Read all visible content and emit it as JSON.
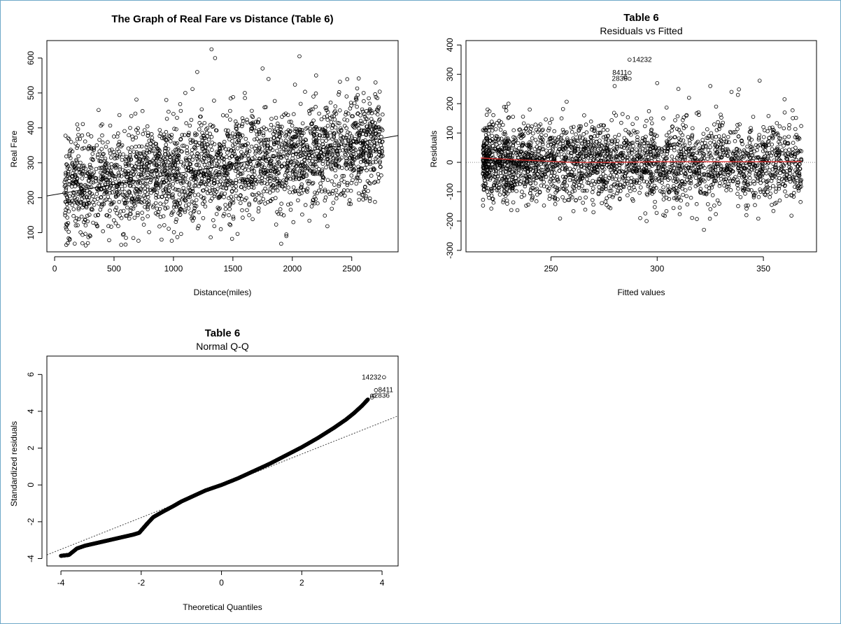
{
  "colors": {
    "background": "#ffffff",
    "frame_border": "#6fa8c8",
    "points": "#000000",
    "smoother": "#e03030",
    "reference_line": "#888888"
  },
  "chart_data": [
    {
      "type": "scatter",
      "title": "The Graph of Real Fare vs Distance (Table 6)",
      "subtitle": "",
      "xlabel": "Distance(miles)",
      "ylabel": "Real Fare",
      "xlim": [
        -65,
        2890
      ],
      "ylim": [
        45,
        650
      ],
      "xticks": [
        0,
        500,
        1000,
        1500,
        2000,
        2500
      ],
      "yticks": [
        100,
        200,
        300,
        400,
        500,
        600
      ],
      "grid": false,
      "marker": "open-circle",
      "fit_line": {
        "x": [
          -65,
          2890
        ],
        "y": [
          205,
          378
        ]
      },
      "series": [
        {
          "description_points": "dense cloud (approximate sample)",
          "x": [
            100,
            150,
            200,
            300,
            400,
            500,
            600,
            700,
            800,
            900,
            1000,
            1100,
            1200,
            1320,
            1350,
            1500,
            1600,
            1750,
            1800,
            1950,
            2060,
            2200,
            2400,
            2600,
            2700,
            280,
            560,
            940,
            1950,
            1950
          ],
          "y": [
            110,
            300,
            380,
            90,
            410,
            330,
            85,
            260,
            300,
            80,
            440,
            500,
            560,
            625,
            600,
            350,
            500,
            570,
            540,
            380,
            605,
            550,
            450,
            500,
            530,
            70,
            65,
            480,
            90,
            95
          ]
        }
      ]
    },
    {
      "type": "scatter",
      "title": "Table 6",
      "subtitle": "Residuals vs Fitted",
      "xlabel": "Fitted values",
      "ylabel": "Residuals",
      "xlim": [
        210,
        375
      ],
      "ylim": [
        -305,
        415
      ],
      "xticks": [
        250,
        300,
        350
      ],
      "yticks": [
        -300,
        -200,
        -100,
        0,
        100,
        200,
        300,
        400
      ],
      "grid": false,
      "marker": "open-circle",
      "zero_line": {
        "y": 0,
        "style": "dotted"
      },
      "smoother": {
        "x": [
          217,
          230,
          245,
          260,
          280,
          300,
          320,
          340,
          360,
          368
        ],
        "y": [
          15,
          10,
          5,
          0,
          0,
          2,
          2,
          2,
          2,
          3
        ]
      },
      "labeled_points": [
        {
          "label": "14232",
          "x": 287,
          "y": 350
        },
        {
          "label": "8411",
          "x": 287,
          "y": 305
        },
        {
          "label": "2836",
          "x": 287,
          "y": 285
        }
      ],
      "series": [
        {
          "description_points": "dense cloud (approximate sample)",
          "x": [
            220,
            230,
            240,
            255,
            270,
            280,
            292,
            300,
            310,
            315,
            325,
            335,
            342,
            350,
            360,
            322,
            295,
            285,
            338
          ],
          "y": [
            -100,
            200,
            180,
            150,
            -170,
            260,
            -190,
            270,
            250,
            220,
            260,
            240,
            -180,
            120,
            170,
            -230,
            -200,
            290,
            230
          ]
        }
      ]
    },
    {
      "type": "scatter",
      "title": "Table 6",
      "subtitle": "Normal Q-Q",
      "xlabel": "Theoretical Quantiles",
      "ylabel": "Standardized residuals",
      "xlim": [
        -4.35,
        4.4
      ],
      "ylim": [
        -4.4,
        7.0
      ],
      "xticks": [
        -4,
        -2,
        0,
        2,
        4
      ],
      "yticks": [
        -4,
        -2,
        0,
        2,
        4,
        6
      ],
      "grid": false,
      "marker": "open-circle",
      "reference_line": {
        "x": [
          -4.35,
          4.4
        ],
        "y": [
          -3.8,
          3.75
        ],
        "style": "dotted"
      },
      "labeled_points": [
        {
          "label": "14232",
          "x": 4.05,
          "y": 5.85
        },
        {
          "label": "8411",
          "x": 3.85,
          "y": 5.15
        },
        {
          "label": "2836",
          "x": 3.75,
          "y": 4.85
        }
      ],
      "series": [
        {
          "description_points": "sample quantiles along curve",
          "x": [
            -4.0,
            -3.8,
            -3.6,
            -3.4,
            -3.2,
            -3.0,
            -2.8,
            -2.6,
            -2.4,
            -2.2,
            -2.05,
            -1.95,
            -1.85,
            -1.7,
            -1.5,
            -1.2,
            -1.0,
            -0.7,
            -0.4,
            0.0,
            0.4,
            0.8,
            1.2,
            1.6,
            2.0,
            2.4,
            2.8,
            3.1,
            3.3,
            3.5,
            3.65
          ],
          "y": [
            -3.85,
            -3.8,
            -3.45,
            -3.3,
            -3.2,
            -3.1,
            -3.0,
            -2.9,
            -2.8,
            -2.7,
            -2.6,
            -2.35,
            -2.1,
            -1.75,
            -1.5,
            -1.15,
            -0.9,
            -0.6,
            -0.3,
            0.0,
            0.35,
            0.75,
            1.15,
            1.6,
            2.05,
            2.55,
            3.1,
            3.55,
            3.9,
            4.3,
            4.65
          ]
        }
      ]
    }
  ]
}
